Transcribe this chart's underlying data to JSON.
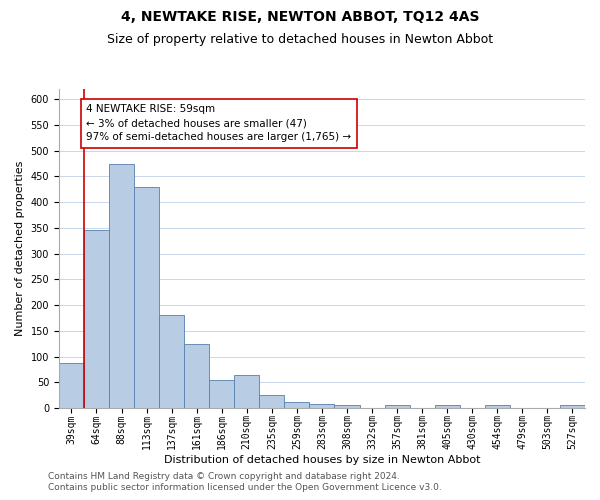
{
  "title": "4, NEWTAKE RISE, NEWTON ABBOT, TQ12 4AS",
  "subtitle": "Size of property relative to detached houses in Newton Abbot",
  "xlabel": "Distribution of detached houses by size in Newton Abbot",
  "ylabel": "Number of detached properties",
  "categories": [
    "39sqm",
    "64sqm",
    "88sqm",
    "113sqm",
    "137sqm",
    "161sqm",
    "186sqm",
    "210sqm",
    "235sqm",
    "259sqm",
    "283sqm",
    "308sqm",
    "332sqm",
    "357sqm",
    "381sqm",
    "405sqm",
    "430sqm",
    "454sqm",
    "479sqm",
    "503sqm",
    "527sqm"
  ],
  "values": [
    88,
    345,
    475,
    430,
    180,
    125,
    55,
    65,
    25,
    12,
    8,
    5,
    0,
    5,
    0,
    5,
    0,
    5,
    0,
    0,
    5
  ],
  "bar_color": "#b8cce4",
  "bar_edge_color": "#5580b0",
  "highlight_index": 1,
  "highlight_line_color": "#cc0000",
  "annotation_text": "4 NEWTAKE RISE: 59sqm\n← 3% of detached houses are smaller (47)\n97% of semi-detached houses are larger (1,765) →",
  "annotation_box_color": "#ffffff",
  "annotation_box_edge": "#cc0000",
  "ylim": [
    0,
    620
  ],
  "yticks": [
    0,
    50,
    100,
    150,
    200,
    250,
    300,
    350,
    400,
    450,
    500,
    550,
    600
  ],
  "footer_line1": "Contains HM Land Registry data © Crown copyright and database right 2024.",
  "footer_line2": "Contains public sector information licensed under the Open Government Licence v3.0.",
  "bg_color": "#ffffff",
  "grid_color": "#c8d8ea",
  "title_fontsize": 10,
  "subtitle_fontsize": 9,
  "axis_label_fontsize": 8,
  "tick_fontsize": 7,
  "annotation_fontsize": 7.5,
  "footer_fontsize": 6.5
}
